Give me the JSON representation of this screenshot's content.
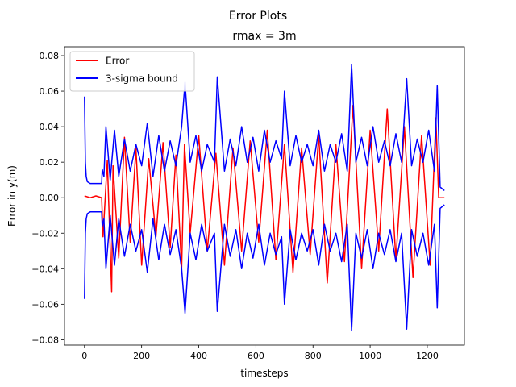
{
  "figure": {
    "suptitle": "Error Plots",
    "title": "rmax = 3m",
    "xlabel": "timesteps",
    "ylabel": "Error in y(m)"
  },
  "legend": {
    "placement": "top-left",
    "entries": [
      {
        "label": "Error",
        "color": "#ff0000"
      },
      {
        "label": "3-sigma bound",
        "color": "#0000ff"
      }
    ]
  },
  "chart_data": {
    "type": "line",
    "title": "rmax = 3m",
    "suptitle": "Error Plots",
    "xlabel": "timesteps",
    "ylabel": "Error in y(m)",
    "xlim": [
      -70,
      1330
    ],
    "ylim": [
      -0.083,
      0.085
    ],
    "xticks": [
      0,
      200,
      400,
      600,
      800,
      1000,
      1200
    ],
    "yticks": [
      -0.08,
      -0.06,
      -0.04,
      -0.02,
      0.0,
      0.02,
      0.04,
      0.06,
      0.08
    ],
    "ytick_labels": [
      "−0.08",
      "−0.06",
      "−0.04",
      "−0.02",
      "0.00",
      "0.02",
      "0.04",
      "0.06",
      "0.08"
    ],
    "grid": false,
    "series": [
      {
        "name": "Error",
        "color": "#ff0000",
        "x": [
          0,
          20,
          40,
          60,
          65,
          80,
          95,
          100,
          120,
          140,
          160,
          180,
          200,
          225,
          250,
          275,
          300,
          320,
          340,
          350,
          370,
          400,
          430,
          460,
          490,
          520,
          550,
          580,
          610,
          640,
          670,
          700,
          730,
          760,
          790,
          820,
          850,
          880,
          910,
          940,
          970,
          1000,
          1030,
          1060,
          1090,
          1120,
          1150,
          1180,
          1210,
          1230,
          1240,
          1260
        ],
        "y": [
          0.001,
          0.0,
          0.001,
          0.0,
          -0.022,
          0.021,
          -0.053,
          0.018,
          -0.034,
          0.034,
          -0.025,
          0.028,
          -0.038,
          0.022,
          -0.022,
          0.031,
          -0.028,
          0.024,
          -0.04,
          0.03,
          -0.02,
          0.035,
          -0.03,
          0.025,
          -0.038,
          0.028,
          -0.03,
          0.032,
          -0.025,
          0.038,
          -0.035,
          0.03,
          -0.042,
          0.028,
          -0.032,
          0.035,
          -0.048,
          0.03,
          -0.036,
          0.052,
          -0.04,
          0.038,
          -0.03,
          0.05,
          -0.035,
          0.04,
          -0.045,
          0.035,
          -0.038,
          0.045,
          0.0,
          0.0
        ]
      },
      {
        "name": "3-sigma bound (upper)",
        "color": "#0000ff",
        "x": [
          0,
          3,
          6,
          10,
          20,
          40,
          60,
          62,
          68,
          75,
          90,
          105,
          120,
          140,
          160,
          180,
          200,
          220,
          240,
          260,
          280,
          300,
          320,
          340,
          352,
          370,
          390,
          410,
          430,
          455,
          465,
          490,
          510,
          530,
          550,
          570,
          590,
          610,
          630,
          650,
          670,
          690,
          700,
          720,
          740,
          760,
          780,
          800,
          820,
          840,
          860,
          880,
          900,
          920,
          935,
          950,
          970,
          990,
          1010,
          1030,
          1050,
          1070,
          1090,
          1110,
          1128,
          1145,
          1165,
          1185,
          1205,
          1225,
          1235,
          1245,
          1260
        ],
        "y": [
          0.057,
          0.02,
          0.012,
          0.009,
          0.008,
          0.008,
          0.008,
          0.016,
          0.012,
          0.04,
          0.01,
          0.038,
          0.012,
          0.033,
          0.015,
          0.03,
          0.018,
          0.042,
          0.012,
          0.035,
          0.015,
          0.032,
          0.018,
          0.04,
          0.065,
          0.02,
          0.035,
          0.015,
          0.03,
          0.02,
          0.068,
          0.015,
          0.033,
          0.018,
          0.04,
          0.02,
          0.034,
          0.015,
          0.038,
          0.02,
          0.032,
          0.022,
          0.06,
          0.018,
          0.035,
          0.02,
          0.03,
          0.018,
          0.038,
          0.015,
          0.03,
          0.02,
          0.036,
          0.015,
          0.075,
          0.02,
          0.034,
          0.018,
          0.04,
          0.02,
          0.032,
          0.018,
          0.036,
          0.02,
          0.067,
          0.018,
          0.033,
          0.02,
          0.038,
          0.015,
          0.063,
          0.006,
          0.004
        ]
      },
      {
        "name": "3-sigma bound (lower)",
        "color": "#0000ff",
        "x": [
          0,
          3,
          6,
          10,
          20,
          40,
          60,
          62,
          68,
          75,
          90,
          105,
          120,
          140,
          160,
          180,
          200,
          220,
          240,
          260,
          280,
          300,
          320,
          340,
          352,
          370,
          390,
          410,
          430,
          455,
          465,
          490,
          510,
          530,
          550,
          570,
          590,
          610,
          630,
          650,
          670,
          690,
          700,
          720,
          740,
          760,
          780,
          800,
          820,
          840,
          860,
          880,
          900,
          920,
          935,
          950,
          970,
          990,
          1010,
          1030,
          1050,
          1070,
          1090,
          1110,
          1128,
          1145,
          1165,
          1185,
          1205,
          1225,
          1235,
          1245,
          1260
        ],
        "y": [
          -0.057,
          -0.02,
          -0.012,
          -0.009,
          -0.008,
          -0.008,
          -0.008,
          -0.016,
          -0.012,
          -0.04,
          -0.01,
          -0.038,
          -0.012,
          -0.033,
          -0.015,
          -0.03,
          -0.018,
          -0.042,
          -0.012,
          -0.035,
          -0.015,
          -0.032,
          -0.018,
          -0.04,
          -0.065,
          -0.02,
          -0.035,
          -0.015,
          -0.03,
          -0.02,
          -0.064,
          -0.015,
          -0.033,
          -0.018,
          -0.04,
          -0.02,
          -0.034,
          -0.015,
          -0.038,
          -0.02,
          -0.032,
          -0.022,
          -0.06,
          -0.018,
          -0.035,
          -0.02,
          -0.03,
          -0.018,
          -0.038,
          -0.015,
          -0.03,
          -0.02,
          -0.036,
          -0.015,
          -0.075,
          -0.02,
          -0.034,
          -0.018,
          -0.04,
          -0.02,
          -0.032,
          -0.018,
          -0.036,
          -0.02,
          -0.074,
          -0.018,
          -0.033,
          -0.02,
          -0.038,
          -0.015,
          -0.062,
          -0.006,
          -0.004
        ]
      }
    ]
  }
}
